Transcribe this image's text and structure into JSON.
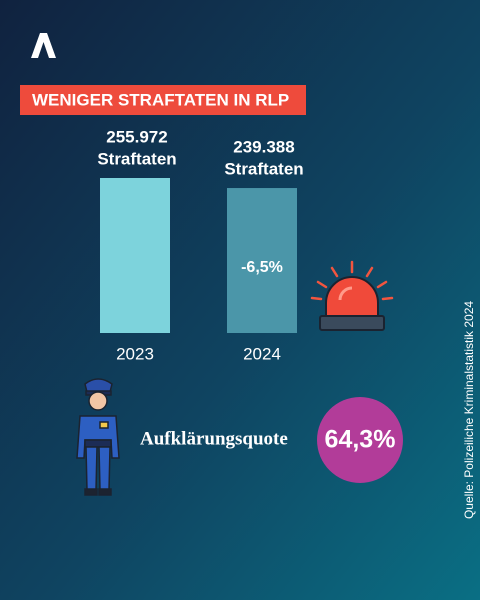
{
  "chart_data": {
    "type": "bar",
    "title": "WENIGER STRAFTATEN IN RLP",
    "categories": [
      "2023",
      "2024"
    ],
    "values": [
      255972,
      239388
    ],
    "value_labels": [
      "255.972",
      "239.388"
    ],
    "unit_label": "Straftaten",
    "colors": [
      "#7dd3dc",
      "#4b96a9"
    ],
    "annotation": "-6,5%"
  },
  "clearance": {
    "label": "Aufklärungsquote",
    "value": "64,3%"
  },
  "source": "Quelle: Polizeiliche Kriminalstatistik 2024"
}
